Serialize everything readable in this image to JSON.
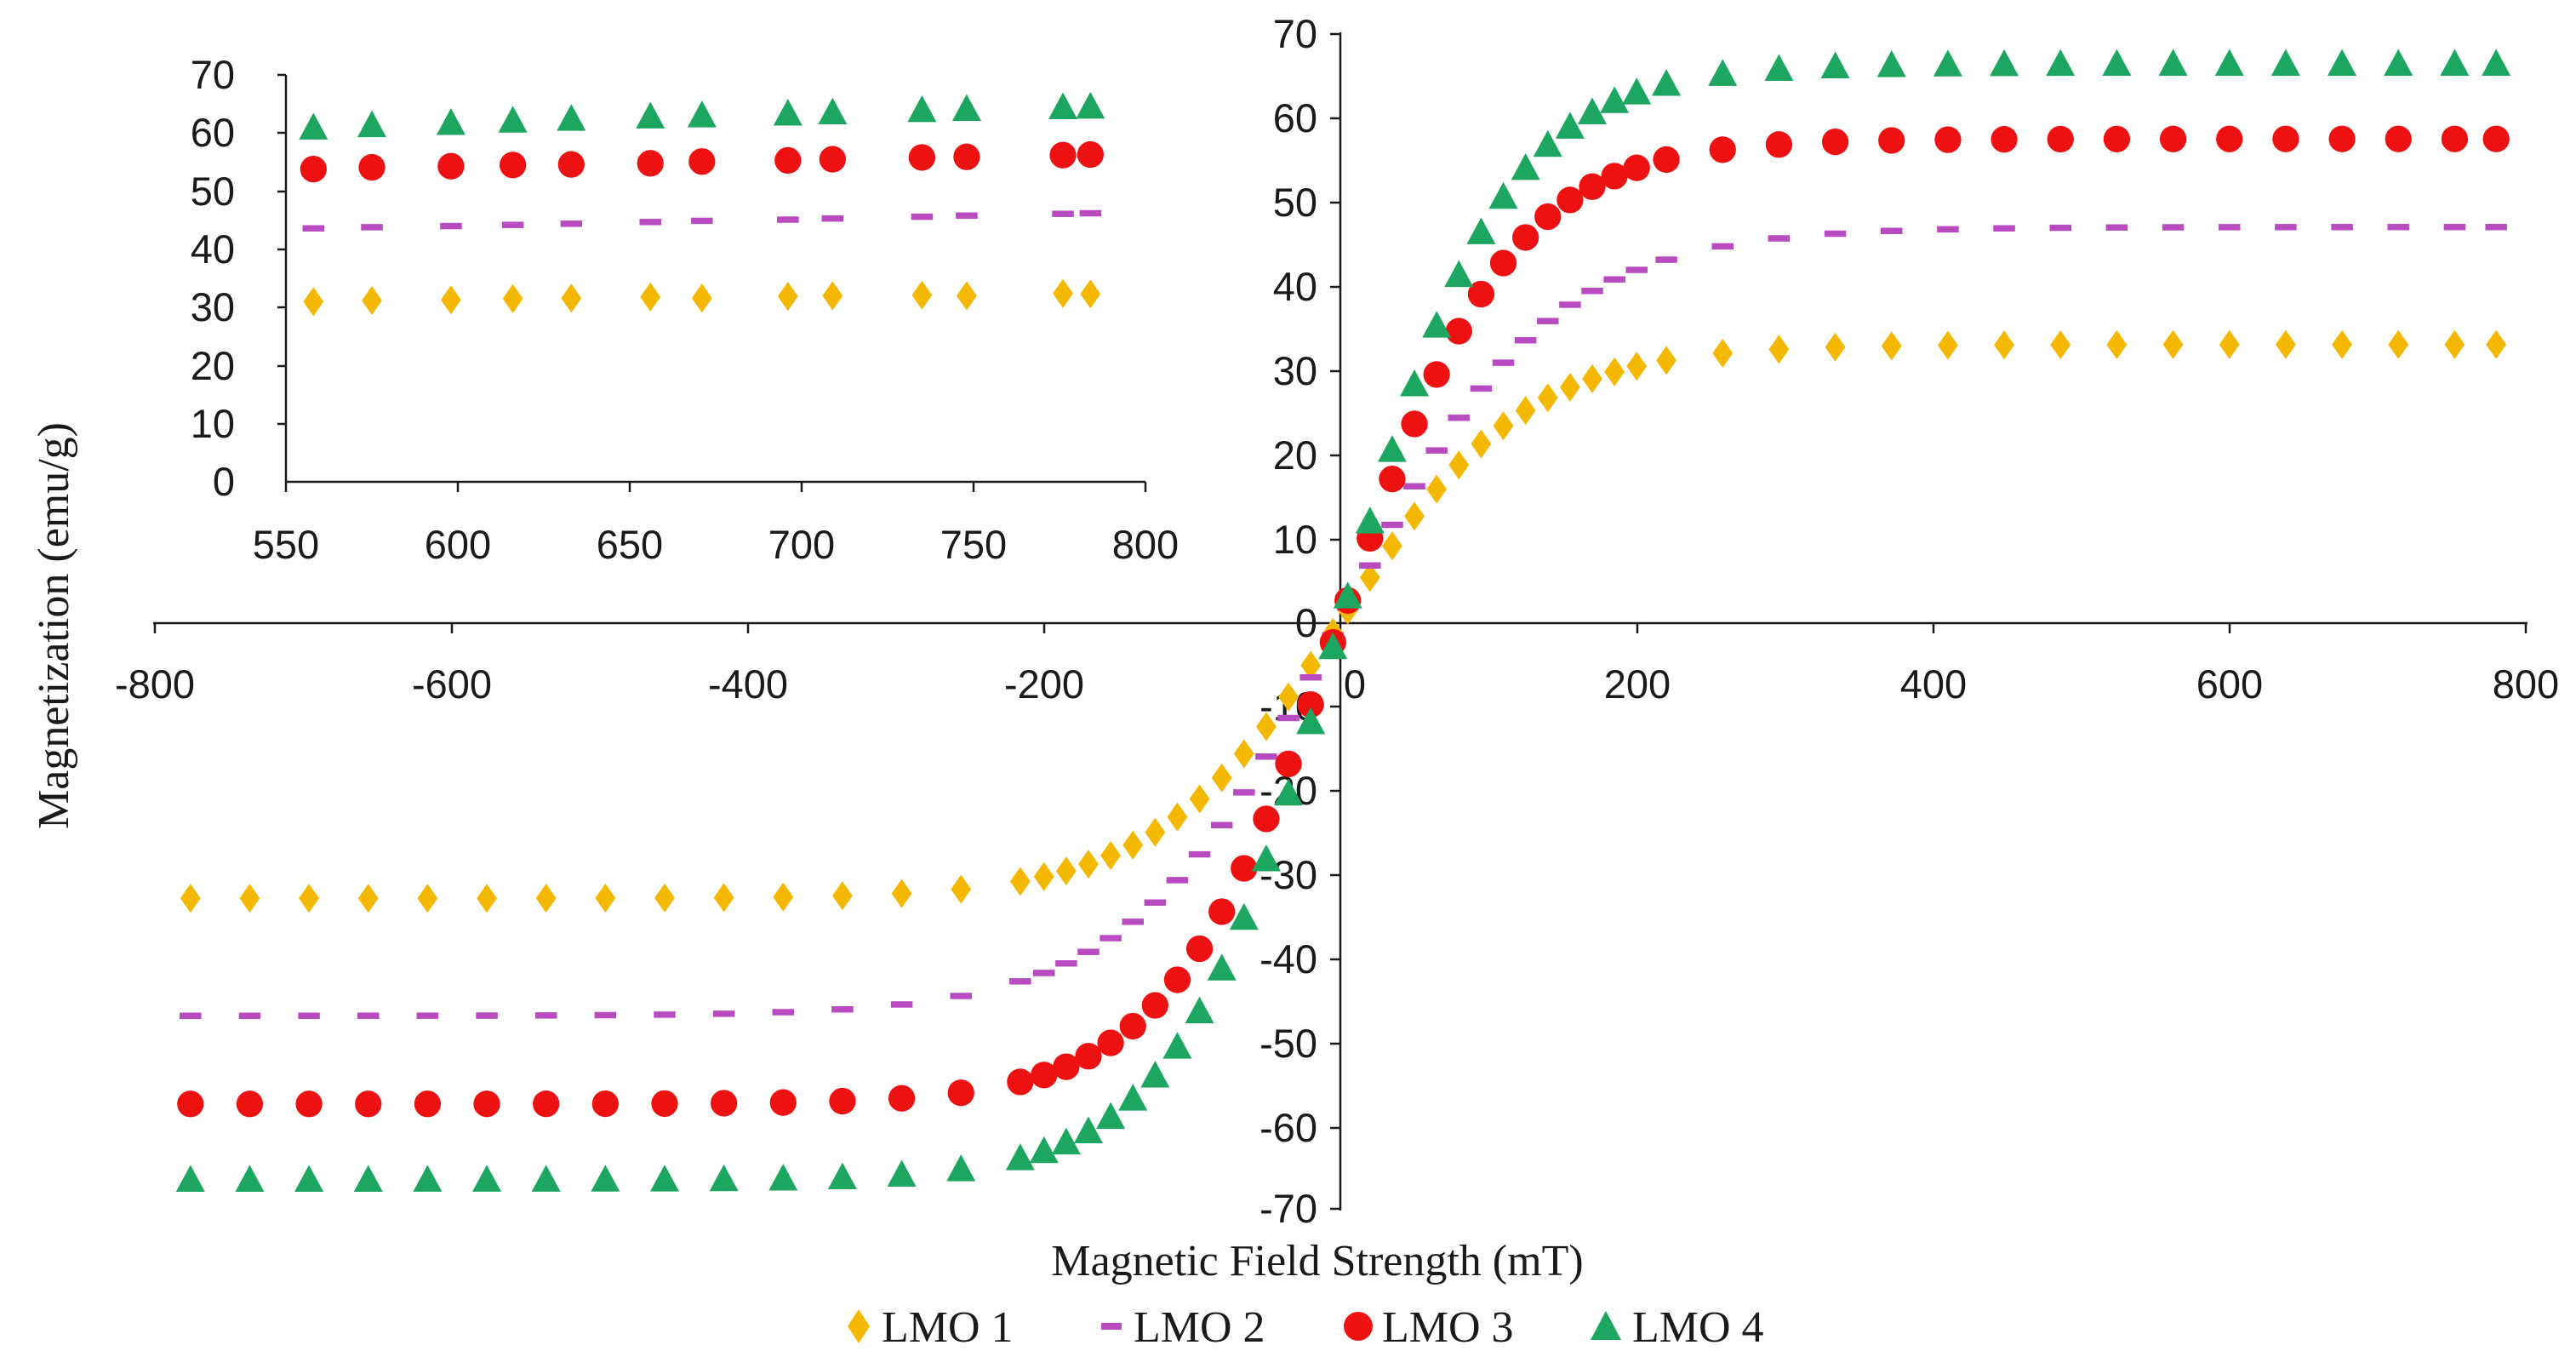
{
  "chart_data": [
    {
      "type": "scatter",
      "title": "",
      "xlabel": "Magnetic Field Strength (mT)",
      "ylabel": "Magnetization (emu/g)",
      "xlim": [
        -800,
        800
      ],
      "ylim": [
        -70,
        70
      ],
      "x_ticks": [
        "-800",
        "-600",
        "-400",
        "-200",
        "0",
        "200",
        "400",
        "600",
        "800"
      ],
      "y_ticks": [
        "70",
        "60",
        "50",
        "40",
        "30",
        "20",
        "10",
        "0",
        "-10",
        "-20",
        "-30",
        "-40",
        "-50",
        "-60",
        "-70"
      ],
      "legend_position": "bottom",
      "series": [
        {
          "name": "LMO 1",
          "marker": "diamond",
          "color": "#F5B800",
          "Ms": 33.0,
          "H0": 125
        },
        {
          "name": "LMO 2",
          "marker": "dash",
          "color": "#B84BC0",
          "Ms": 47.0,
          "H0": 140
        },
        {
          "name": "LMO 3",
          "marker": "circle",
          "color": "#EE1111",
          "Ms": 57.5,
          "H0": 115
        },
        {
          "name": "LMO 4",
          "marker": "triangle",
          "color": "#1DA660",
          "Ms": 66.5,
          "H0": 110
        }
      ],
      "x": [
        -776,
        -736,
        -696,
        -656,
        -616,
        -576,
        -536,
        -496,
        -456,
        -416,
        -376,
        -336,
        -296,
        -256,
        -216,
        -200,
        -185,
        -170,
        -155,
        -140,
        -125,
        -110,
        -95,
        -80,
        -65,
        -50,
        -35,
        -20,
        -5,
        5,
        20,
        35,
        50,
        65,
        80,
        95,
        110,
        125,
        140,
        155,
        170,
        185,
        200,
        220,
        258,
        296,
        334,
        372,
        410,
        448,
        486,
        524,
        562,
        600,
        638,
        676,
        714,
        752,
        780
      ]
    },
    {
      "type": "scatter",
      "title": "",
      "xlim": [
        550,
        800
      ],
      "ylim": [
        0,
        70
      ],
      "x_ticks": [
        "550",
        "600",
        "650",
        "700",
        "750",
        "800"
      ],
      "y_ticks": [
        "70",
        "60",
        "50",
        "40",
        "30",
        "20",
        "10",
        "0"
      ],
      "x": [
        558,
        575,
        598,
        616,
        633,
        656,
        671,
        696,
        709,
        735,
        748,
        776,
        784
      ],
      "series": [
        {
          "name": "LMO 1",
          "values": [
            31.0,
            31.2,
            31.3,
            31.5,
            31.6,
            31.8,
            31.6,
            31.9,
            32.0,
            32.1,
            32.0,
            32.4,
            32.3
          ]
        },
        {
          "name": "LMO 2",
          "values": [
            43.6,
            43.8,
            44.0,
            44.2,
            44.4,
            44.7,
            44.9,
            45.1,
            45.3,
            45.6,
            45.8,
            46.1,
            46.2
          ]
        },
        {
          "name": "LMO 3",
          "values": [
            53.8,
            54.1,
            54.3,
            54.5,
            54.6,
            54.8,
            55.1,
            55.3,
            55.5,
            55.8,
            55.9,
            56.2,
            56.3
          ]
        },
        {
          "name": "LMO 4",
          "values": [
            61.0,
            61.4,
            61.8,
            62.2,
            62.5,
            62.9,
            63.1,
            63.4,
            63.6,
            64.0,
            64.2,
            64.5,
            64.6
          ]
        }
      ]
    }
  ]
}
